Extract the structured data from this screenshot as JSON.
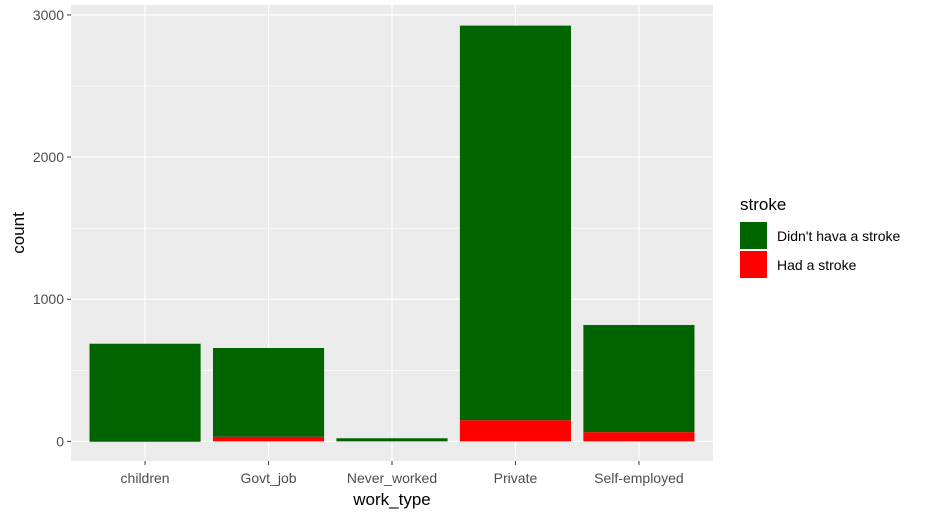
{
  "chart_data": {
    "type": "bar",
    "stacked": true,
    "categories": [
      "children",
      "Govt_job",
      "Never_worked",
      "Private",
      "Self-employed"
    ],
    "series": [
      {
        "name": "Didn't hava a stroke",
        "values": [
          685,
          624,
          22,
          2776,
          754
        ],
        "color": "#006400"
      },
      {
        "name": "Had a stroke",
        "values": [
          2,
          33,
          0,
          149,
          65
        ],
        "color": "#ff0000"
      }
    ],
    "xlabel": "work_type",
    "ylabel": "count",
    "ylim": [
      -138,
      3070
    ],
    "yticks": [
      0,
      1000,
      2000,
      3000
    ],
    "legend_title": "stroke",
    "legend_position": "right",
    "grid": true,
    "panel_background": "#ebebeb",
    "grid_color": "#ffffff"
  }
}
